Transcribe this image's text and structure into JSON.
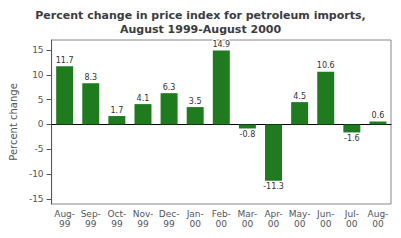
{
  "chart_data": {
    "type": "bar",
    "title": "Percent change in price index for petroleum imports,\nAugust 1999-August 2000",
    "ylabel": "Percent change",
    "categories": [
      "Aug-\n99",
      "Sep-\n99",
      "Oct-\n99",
      "Nov-\n99",
      "Dec-\n99",
      "Jan-\n00",
      "Feb-\n00",
      "Mar-\n00",
      "Apr-\n00",
      "May-\n00",
      "Jun-\n00",
      "Jul-\n00",
      "Aug-\n00"
    ],
    "values": [
      11.7,
      8.3,
      1.7,
      4.1,
      6.3,
      3.5,
      14.9,
      -0.8,
      -11.3,
      4.5,
      10.6,
      -1.6,
      0.6
    ],
    "color": "#1e7b1e",
    "ylim": [
      -16,
      17
    ],
    "yticks": [
      -15,
      -10,
      -5,
      0,
      5,
      10,
      15
    ],
    "grid": false,
    "data_labels": true
  }
}
